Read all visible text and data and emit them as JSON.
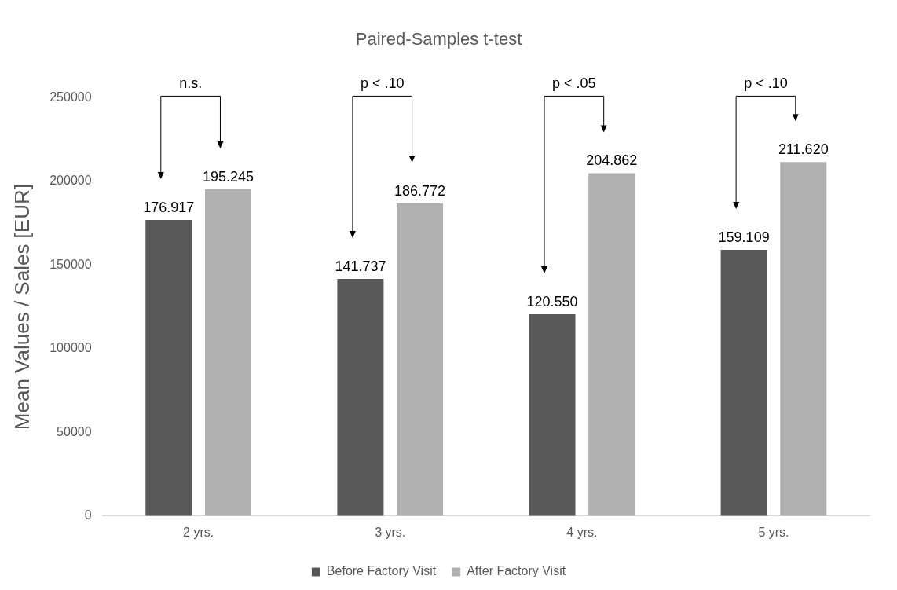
{
  "chart_data": {
    "type": "bar",
    "title": "Paired-Samples t-test",
    "ylabel": "Mean Values / Sales [EUR]",
    "categories": [
      "2 yrs.",
      "3 yrs.",
      "4 yrs.",
      "5 yrs."
    ],
    "series": [
      {
        "name": "Before Factory Visit",
        "color": "#595959",
        "values": [
          176917,
          141737,
          120550,
          159109
        ],
        "value_labels": [
          "176.917",
          "141.737",
          "120.550",
          "159.109"
        ]
      },
      {
        "name": "After Factory Visit",
        "color": "#b0b0b0",
        "values": [
          195245,
          186772,
          204862,
          211620
        ],
        "value_labels": [
          "195.245",
          "186.772",
          "204.862",
          "211.620"
        ]
      }
    ],
    "ylim": [
      0,
      250000
    ],
    "yticks": [
      0,
      50000,
      100000,
      150000,
      200000,
      250000
    ],
    "grid": false,
    "legend": "bottom",
    "annotations": [
      "n.s.",
      "p < .10",
      "p < .05",
      "p < .10"
    ]
  }
}
